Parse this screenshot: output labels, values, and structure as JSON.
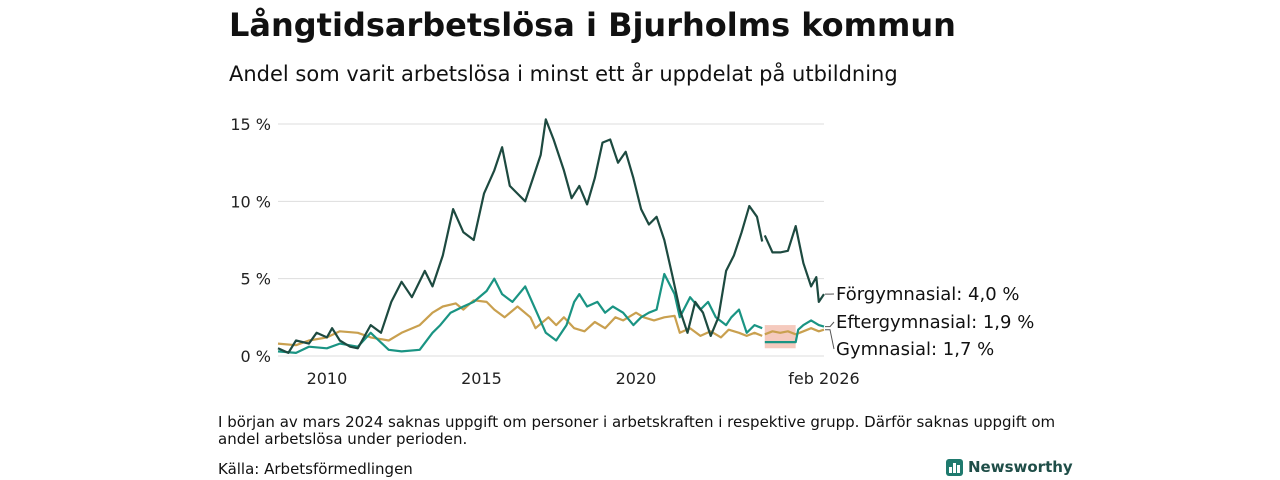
{
  "title": "Långtidsarbetslösa i Bjurholms kommun",
  "subtitle": "Andel som varit arbetslösa i minst ett år uppdelat på utbildning",
  "note": "I början av mars 2024 saknas uppgift om personer i arbetskraften i respektive grupp. Därför saknas uppgift om andel arbetslösa under perioden.",
  "source": "Källa: Arbetsförmedlingen",
  "brand": "Newsworthy",
  "colors": {
    "forgymnasial": "#1d4a40",
    "eftergymnasial": "#1a9483",
    "gymnasial": "#c9a04f",
    "missing_band": "#f2b8a8",
    "grid": "#dddddd"
  },
  "chart_data": {
    "type": "line",
    "x_axis": {
      "ticks": [
        "2010",
        "2015",
        "2020",
        "feb 2026"
      ],
      "range": [
        "2008-06",
        "2026-02"
      ]
    },
    "y_axis": {
      "ticks": [
        "0 %",
        "5 %",
        "10 %",
        "15 %"
      ],
      "range": [
        0,
        15
      ]
    },
    "grid": true,
    "legend_placement": "end-labels right",
    "missing_period": [
      "2024-03",
      "2025-03"
    ],
    "series": [
      {
        "name": "Förgymnasial",
        "label": "Förgymnasial: 4,0 %",
        "key": "forgymnasial",
        "points": [
          [
            "2008-06",
            0.5
          ],
          [
            "2008-10",
            0.2
          ],
          [
            "2009-01",
            1.0
          ],
          [
            "2009-06",
            0.8
          ],
          [
            "2009-09",
            1.5
          ],
          [
            "2010-01",
            1.2
          ],
          [
            "2010-03",
            1.8
          ],
          [
            "2010-06",
            1.0
          ],
          [
            "2010-10",
            0.6
          ],
          [
            "2011-01",
            0.5
          ],
          [
            "2011-06",
            2.0
          ],
          [
            "2011-10",
            1.5
          ],
          [
            "2012-02",
            3.5
          ],
          [
            "2012-06",
            4.8
          ],
          [
            "2012-10",
            3.8
          ],
          [
            "2013-03",
            5.5
          ],
          [
            "2013-06",
            4.5
          ],
          [
            "2013-10",
            6.5
          ],
          [
            "2014-02",
            9.5
          ],
          [
            "2014-06",
            8.0
          ],
          [
            "2014-10",
            7.5
          ],
          [
            "2015-02",
            10.5
          ],
          [
            "2015-06",
            12.0
          ],
          [
            "2015-09",
            13.5
          ],
          [
            "2015-12",
            11.0
          ],
          [
            "2016-03",
            10.5
          ],
          [
            "2016-06",
            10.0
          ],
          [
            "2016-09",
            11.5
          ],
          [
            "2016-12",
            13.0
          ],
          [
            "2017-02",
            15.3
          ],
          [
            "2017-05",
            14.0
          ],
          [
            "2017-09",
            12.0
          ],
          [
            "2017-12",
            10.2
          ],
          [
            "2018-03",
            11.0
          ],
          [
            "2018-06",
            9.8
          ],
          [
            "2018-09",
            11.5
          ],
          [
            "2018-12",
            13.8
          ],
          [
            "2019-03",
            14.0
          ],
          [
            "2019-06",
            12.5
          ],
          [
            "2019-09",
            13.2
          ],
          [
            "2019-12",
            11.5
          ],
          [
            "2020-03",
            9.5
          ],
          [
            "2020-06",
            8.5
          ],
          [
            "2020-09",
            9.0
          ],
          [
            "2020-12",
            7.5
          ],
          [
            "2021-03",
            5.3
          ],
          [
            "2021-06",
            3.0
          ],
          [
            "2021-09",
            1.5
          ],
          [
            "2021-12",
            3.5
          ],
          [
            "2022-03",
            2.8
          ],
          [
            "2022-06",
            1.3
          ],
          [
            "2022-09",
            2.5
          ],
          [
            "2022-12",
            5.5
          ],
          [
            "2023-03",
            6.5
          ],
          [
            "2023-06",
            8.0
          ],
          [
            "2023-09",
            9.7
          ],
          [
            "2023-12",
            9.0
          ],
          [
            "2024-02",
            7.4
          ],
          null,
          [
            "2024-03",
            7.8
          ],
          [
            "2024-06",
            6.7
          ],
          [
            "2024-09",
            6.7
          ],
          [
            "2024-12",
            6.8
          ],
          [
            "2025-03",
            8.4
          ],
          [
            "2025-06",
            6.0
          ],
          [
            "2025-09",
            4.5
          ],
          [
            "2025-11",
            5.1
          ],
          [
            "2025-12",
            3.5
          ],
          [
            "2026-02",
            4.0
          ]
        ]
      },
      {
        "name": "Eftergymnasial",
        "label": "Eftergymnasial: 1,9 %",
        "key": "eftergymnasial",
        "points": [
          [
            "2008-06",
            0.3
          ],
          [
            "2009-01",
            0.2
          ],
          [
            "2009-06",
            0.6
          ],
          [
            "2010-01",
            0.5
          ],
          [
            "2010-06",
            0.8
          ],
          [
            "2011-01",
            0.6
          ],
          [
            "2011-06",
            1.5
          ],
          [
            "2012-01",
            0.4
          ],
          [
            "2012-06",
            0.3
          ],
          [
            "2013-01",
            0.4
          ],
          [
            "2013-06",
            1.5
          ],
          [
            "2013-09",
            2.0
          ],
          [
            "2014-01",
            2.8
          ],
          [
            "2014-06",
            3.2
          ],
          [
            "2014-10",
            3.5
          ],
          [
            "2015-03",
            4.2
          ],
          [
            "2015-06",
            5.0
          ],
          [
            "2015-09",
            4.0
          ],
          [
            "2016-01",
            3.5
          ],
          [
            "2016-06",
            4.5
          ],
          [
            "2016-10",
            3.0
          ],
          [
            "2017-02",
            1.5
          ],
          [
            "2017-06",
            1.0
          ],
          [
            "2017-10",
            2.0
          ],
          [
            "2018-01",
            3.5
          ],
          [
            "2018-03",
            4.0
          ],
          [
            "2018-06",
            3.2
          ],
          [
            "2018-10",
            3.5
          ],
          [
            "2019-01",
            2.8
          ],
          [
            "2019-04",
            3.2
          ],
          [
            "2019-08",
            2.8
          ],
          [
            "2019-12",
            2.0
          ],
          [
            "2020-03",
            2.5
          ],
          [
            "2020-06",
            2.8
          ],
          [
            "2020-09",
            3.0
          ],
          [
            "2020-12",
            5.3
          ],
          [
            "2021-04",
            4.0
          ],
          [
            "2021-06",
            2.5
          ],
          [
            "2021-10",
            3.8
          ],
          [
            "2022-02",
            3.0
          ],
          [
            "2022-05",
            3.5
          ],
          [
            "2022-08",
            2.5
          ],
          [
            "2022-12",
            2.0
          ],
          [
            "2023-02",
            2.5
          ],
          [
            "2023-05",
            3.0
          ],
          [
            "2023-08",
            1.5
          ],
          [
            "2023-11",
            2.0
          ],
          [
            "2024-02",
            1.8
          ],
          null,
          [
            "2024-03",
            0.9
          ],
          [
            "2024-10",
            0.9
          ],
          [
            "2025-02",
            0.9
          ],
          [
            "2025-03",
            0.9
          ],
          [
            "2025-04",
            1.7
          ],
          [
            "2025-06",
            2.0
          ],
          [
            "2025-09",
            2.3
          ],
          [
            "2025-12",
            2.0
          ],
          [
            "2026-02",
            1.9
          ]
        ]
      },
      {
        "name": "Gymnasial",
        "label": "Gymnasial: 1,7 %",
        "key": "gymnasial",
        "points": [
          [
            "2008-06",
            0.8
          ],
          [
            "2009-01",
            0.7
          ],
          [
            "2009-06",
            1.0
          ],
          [
            "2010-01",
            1.2
          ],
          [
            "2010-06",
            1.6
          ],
          [
            "2011-01",
            1.5
          ],
          [
            "2011-06",
            1.2
          ],
          [
            "2012-01",
            1.0
          ],
          [
            "2012-06",
            1.5
          ],
          [
            "2013-01",
            2.0
          ],
          [
            "2013-06",
            2.8
          ],
          [
            "2013-10",
            3.2
          ],
          [
            "2014-03",
            3.4
          ],
          [
            "2014-06",
            3.0
          ],
          [
            "2014-10",
            3.6
          ],
          [
            "2015-03",
            3.5
          ],
          [
            "2015-06",
            3.0
          ],
          [
            "2015-10",
            2.5
          ],
          [
            "2016-03",
            3.2
          ],
          [
            "2016-08",
            2.5
          ],
          [
            "2016-10",
            1.8
          ],
          [
            "2017-03",
            2.5
          ],
          [
            "2017-06",
            2.0
          ],
          [
            "2017-09",
            2.5
          ],
          [
            "2018-01",
            1.8
          ],
          [
            "2018-05",
            1.6
          ],
          [
            "2018-09",
            2.2
          ],
          [
            "2019-01",
            1.8
          ],
          [
            "2019-05",
            2.5
          ],
          [
            "2019-08",
            2.3
          ],
          [
            "2020-01",
            2.8
          ],
          [
            "2020-04",
            2.5
          ],
          [
            "2020-08",
            2.3
          ],
          [
            "2020-12",
            2.5
          ],
          [
            "2021-04",
            2.6
          ],
          [
            "2021-06",
            1.5
          ],
          [
            "2021-10",
            1.8
          ],
          [
            "2022-02",
            1.3
          ],
          [
            "2022-06",
            1.6
          ],
          [
            "2022-10",
            1.2
          ],
          [
            "2023-01",
            1.7
          ],
          [
            "2023-05",
            1.5
          ],
          [
            "2023-08",
            1.3
          ],
          [
            "2023-11",
            1.5
          ],
          [
            "2024-02",
            1.3
          ],
          null,
          [
            "2024-03",
            1.4
          ],
          [
            "2024-06",
            1.6
          ],
          [
            "2024-09",
            1.5
          ],
          [
            "2024-12",
            1.6
          ],
          [
            "2025-03",
            1.4
          ],
          [
            "2025-06",
            1.6
          ],
          [
            "2025-09",
            1.8
          ],
          [
            "2025-12",
            1.6
          ],
          [
            "2026-02",
            1.7
          ]
        ]
      }
    ]
  }
}
